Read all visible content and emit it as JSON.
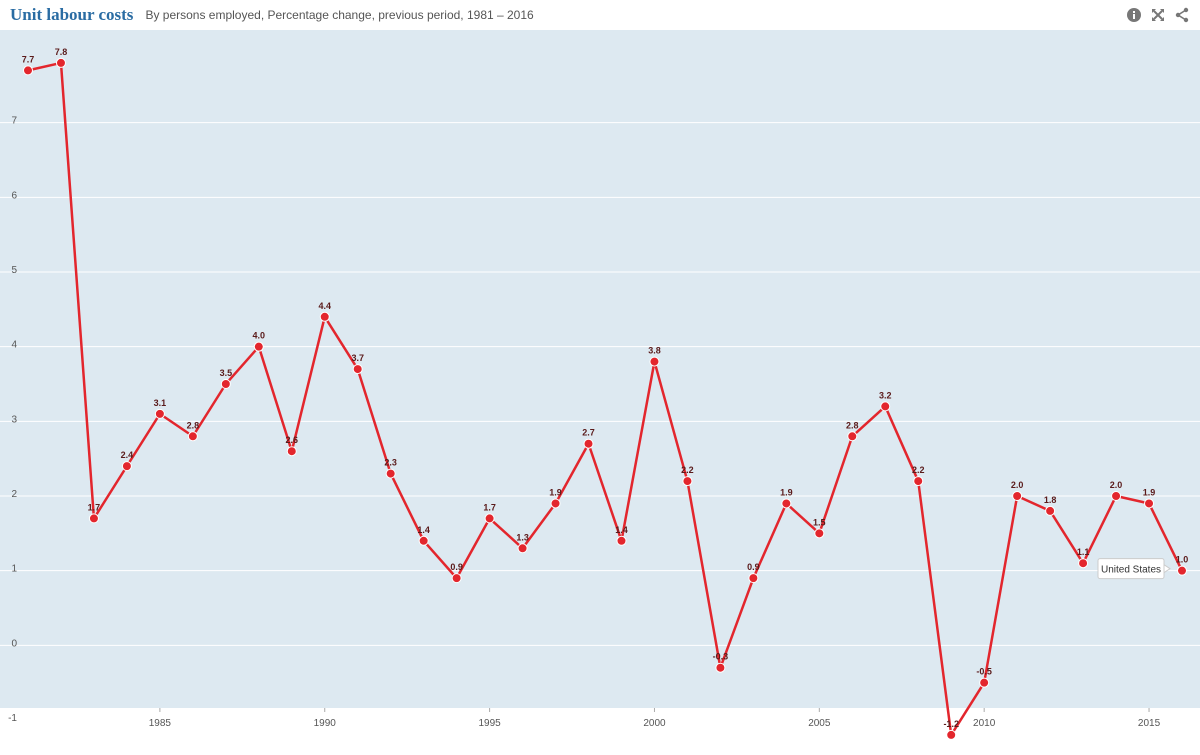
{
  "header": {
    "title": "Unit labour costs",
    "subtitle": "By persons employed, Percentage change, previous period, 1981 – 2016"
  },
  "icons": [
    "info-icon",
    "fullscreen-icon",
    "share-icon"
  ],
  "colors": {
    "title": "#2a6ca3",
    "plot_background": "#dde9f1",
    "series": "#e3262d",
    "data_label": "#5a1a1a"
  },
  "chart_data": {
    "type": "line",
    "title": "Unit labour costs",
    "subtitle": "By persons employed, Percentage change, previous period, 1981 – 2016",
    "x": [
      1981,
      1982,
      1983,
      1984,
      1985,
      1986,
      1987,
      1988,
      1989,
      1990,
      1991,
      1992,
      1993,
      1994,
      1995,
      1996,
      1997,
      1998,
      1999,
      2000,
      2001,
      2002,
      2003,
      2004,
      2005,
      2006,
      2007,
      2008,
      2009,
      2010,
      2011,
      2012,
      2013,
      2014,
      2015,
      2016
    ],
    "series": [
      {
        "name": "United States",
        "values": [
          7.7,
          7.8,
          1.7,
          2.4,
          3.1,
          2.8,
          3.5,
          4.0,
          2.6,
          4.4,
          3.7,
          2.3,
          1.4,
          0.9,
          1.7,
          1.3,
          1.9,
          2.7,
          1.4,
          3.8,
          2.2,
          -0.3,
          0.9,
          1.9,
          1.5,
          2.8,
          3.2,
          2.2,
          -1.2,
          -0.5,
          2.0,
          1.8,
          1.1,
          2.0,
          1.9,
          1.0
        ]
      }
    ],
    "x_ticks": [
      1985,
      1990,
      1995,
      2000,
      2005,
      2010,
      2015
    ],
    "y_ticks": [
      -1,
      0,
      1,
      2,
      3,
      4,
      5,
      6,
      7
    ],
    "ylim": [
      -1.2,
      8
    ],
    "xlim": [
      1981,
      2016
    ],
    "grid": "horizontal",
    "tooltip": "United States"
  }
}
